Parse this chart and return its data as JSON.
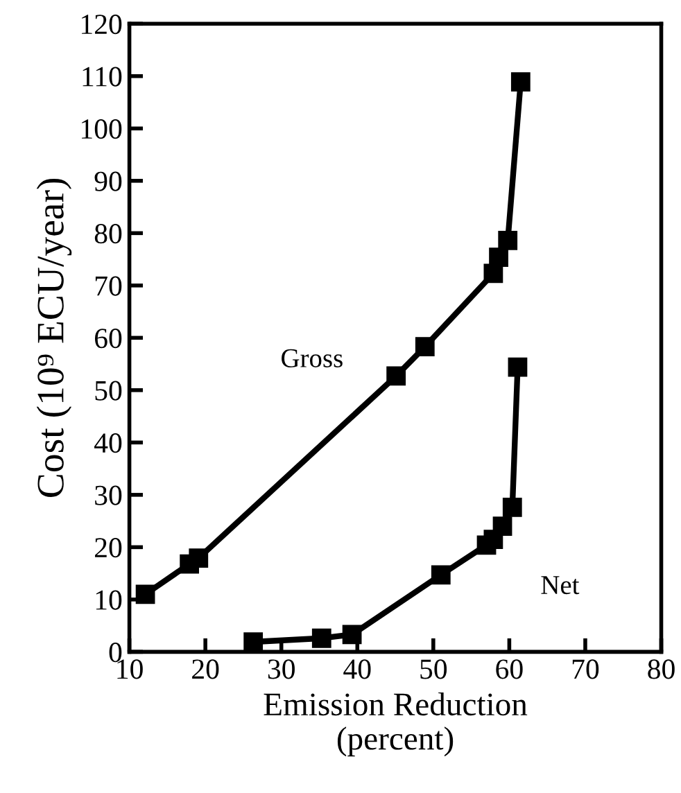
{
  "chart_data": {
    "type": "line",
    "xlabel": "Emission Reduction\n(percent)",
    "ylabel": "Cost (10⁹ ECU/year)",
    "xlim": [
      10,
      80
    ],
    "xticks": [
      10,
      20,
      30,
      40,
      50,
      60,
      70,
      80
    ],
    "ylim": [
      0,
      120
    ],
    "yticks": [
      0,
      10,
      20,
      30,
      40,
      50,
      60,
      70,
      80,
      90,
      100,
      110,
      120
    ],
    "marker": "square",
    "line_style": "solid",
    "grid": false,
    "legend": false,
    "series": [
      {
        "name": "Gross",
        "color": "#000000",
        "x": [
          12.1,
          17.9,
          19.1,
          45.1,
          48.9,
          57.9,
          58.6,
          59.8,
          61.5
        ],
        "values": [
          11.0,
          16.8,
          17.9,
          52.7,
          58.3,
          72.3,
          75.4,
          78.6,
          108.9
        ]
      },
      {
        "name": "Net",
        "color": "#000000",
        "x": [
          26.3,
          35.3,
          39.3,
          51.0,
          57.0,
          57.9,
          59.1,
          60.4,
          61.1
        ],
        "values": [
          1.9,
          2.6,
          3.3,
          14.7,
          20.4,
          21.5,
          24.0,
          27.6,
          54.4
        ]
      }
    ]
  }
}
